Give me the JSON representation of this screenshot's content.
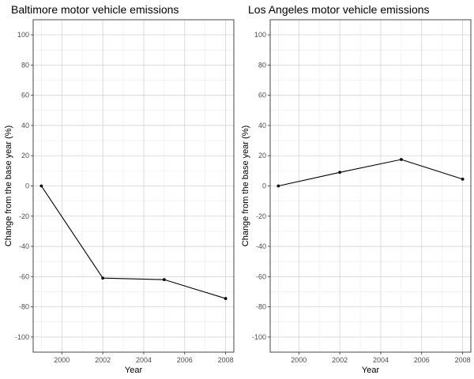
{
  "chart_data": [
    {
      "type": "line",
      "title": "Baltimore motor vehicle emissions",
      "xlabel": "Year",
      "ylabel": "Change from the base year (%)",
      "x": [
        1999,
        2002,
        2005,
        2008
      ],
      "values": [
        0,
        -61,
        -62,
        -74.5
      ],
      "xlim": [
        1998.6,
        2008.4
      ],
      "ylim": [
        -110,
        110
      ],
      "xticks": [
        2000,
        2002,
        2004,
        2006,
        2008
      ],
      "xtick_labels": [
        "2000",
        "2002",
        "2004",
        "2006",
        "2008"
      ],
      "yticks": [
        -100,
        -80,
        -60,
        -40,
        -20,
        0,
        20,
        40,
        60,
        80,
        100
      ],
      "ytick_labels": [
        "-100",
        "-80",
        "-60",
        "-40",
        "-20",
        "0",
        "20",
        "40",
        "60",
        "80",
        "100"
      ],
      "grid": true,
      "color": "#000000"
    },
    {
      "type": "line",
      "title": "Los Angeles motor vehicle emissions",
      "xlabel": "Year",
      "ylabel": "Change from the base year (%)",
      "x": [
        1999,
        2002,
        2005,
        2008
      ],
      "values": [
        0,
        9,
        17.5,
        4.5
      ],
      "xlim": [
        1998.6,
        2008.4
      ],
      "ylim": [
        -110,
        110
      ],
      "xticks": [
        2000,
        2002,
        2004,
        2006,
        2008
      ],
      "xtick_labels": [
        "2000",
        "2002",
        "2004",
        "2006",
        "2008"
      ],
      "yticks": [
        -100,
        -80,
        -60,
        -40,
        -20,
        0,
        20,
        40,
        60,
        80,
        100
      ],
      "ytick_labels": [
        "-100",
        "-80",
        "-60",
        "-40",
        "-20",
        "0",
        "20",
        "40",
        "60",
        "80",
        "100"
      ],
      "grid": true,
      "color": "#000000"
    }
  ]
}
